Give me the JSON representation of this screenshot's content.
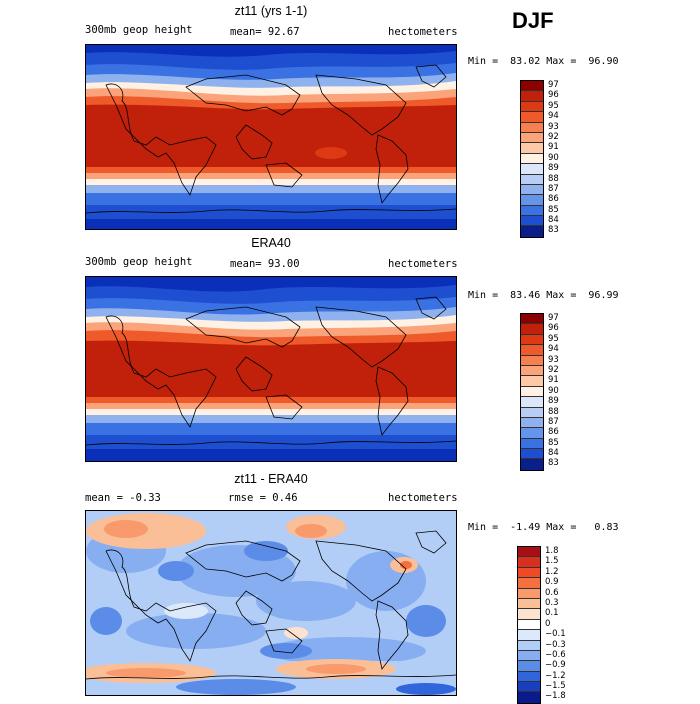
{
  "season": "DJF",
  "panels": [
    {
      "title": "zt11 (yrs 1-1)",
      "variable": "300mb geop height",
      "stat": "mean=  92.67",
      "units": "hectometers",
      "minmax": "Min =  83.02 Max =  96.90",
      "colorbar": {
        "labels": [
          "97",
          "96",
          "95",
          "94",
          "93",
          "92",
          "91",
          "90",
          "89",
          "88",
          "87",
          "86",
          "85",
          "84",
          "83"
        ],
        "colors": [
          "#8b0000",
          "#c1200a",
          "#dd3a14",
          "#ee5a2a",
          "#f68050",
          "#fba37a",
          "#fdc9a6",
          "#fff1e3",
          "#dbe7f8",
          "#b7cdf4",
          "#8fb2ef",
          "#6495ea",
          "#3b72e3",
          "#1d4fd0",
          "#0a1f8a"
        ]
      }
    },
    {
      "title": "ERA40",
      "variable": "300mb geop height",
      "stat": "mean=  93.00",
      "units": "hectometers",
      "minmax": "Min =  83.46 Max =  96.99",
      "colorbar": {
        "labels": [
          "97",
          "96",
          "95",
          "94",
          "93",
          "92",
          "91",
          "90",
          "89",
          "88",
          "87",
          "86",
          "85",
          "84",
          "83"
        ],
        "colors": [
          "#8b0000",
          "#c1200a",
          "#dd3a14",
          "#ee5a2a",
          "#f68050",
          "#fba37a",
          "#fdc9a6",
          "#fff1e3",
          "#dbe7f8",
          "#b7cdf4",
          "#8fb2ef",
          "#6495ea",
          "#3b72e3",
          "#1d4fd0",
          "#0a1f8a"
        ]
      }
    },
    {
      "title": "zt11 - ERA40",
      "stat": "mean =  -0.33",
      "rmse": "rmse =   0.46",
      "units": "hectometers",
      "minmax": "Min =  -1.49 Max =   0.83",
      "colorbar": {
        "labels": [
          "1.8",
          "1.5",
          "1.2",
          "0.9",
          "0.6",
          "0.3",
          "0.1",
          "0",
          "−0.1",
          "−0.3",
          "−0.6",
          "−0.9",
          "−1.2",
          "−1.5",
          "−1.8"
        ],
        "colors": [
          "#a50f15",
          "#d7301f",
          "#ef4a24",
          "#f4703e",
          "#f89a6c",
          "#fbbf98",
          "#fde3cf",
          "#ffffff",
          "#dce9fb",
          "#b3cef6",
          "#86aef0",
          "#5a8ce8",
          "#3165dc",
          "#1a3fbe",
          "#0b1a8a"
        ]
      }
    }
  ]
}
